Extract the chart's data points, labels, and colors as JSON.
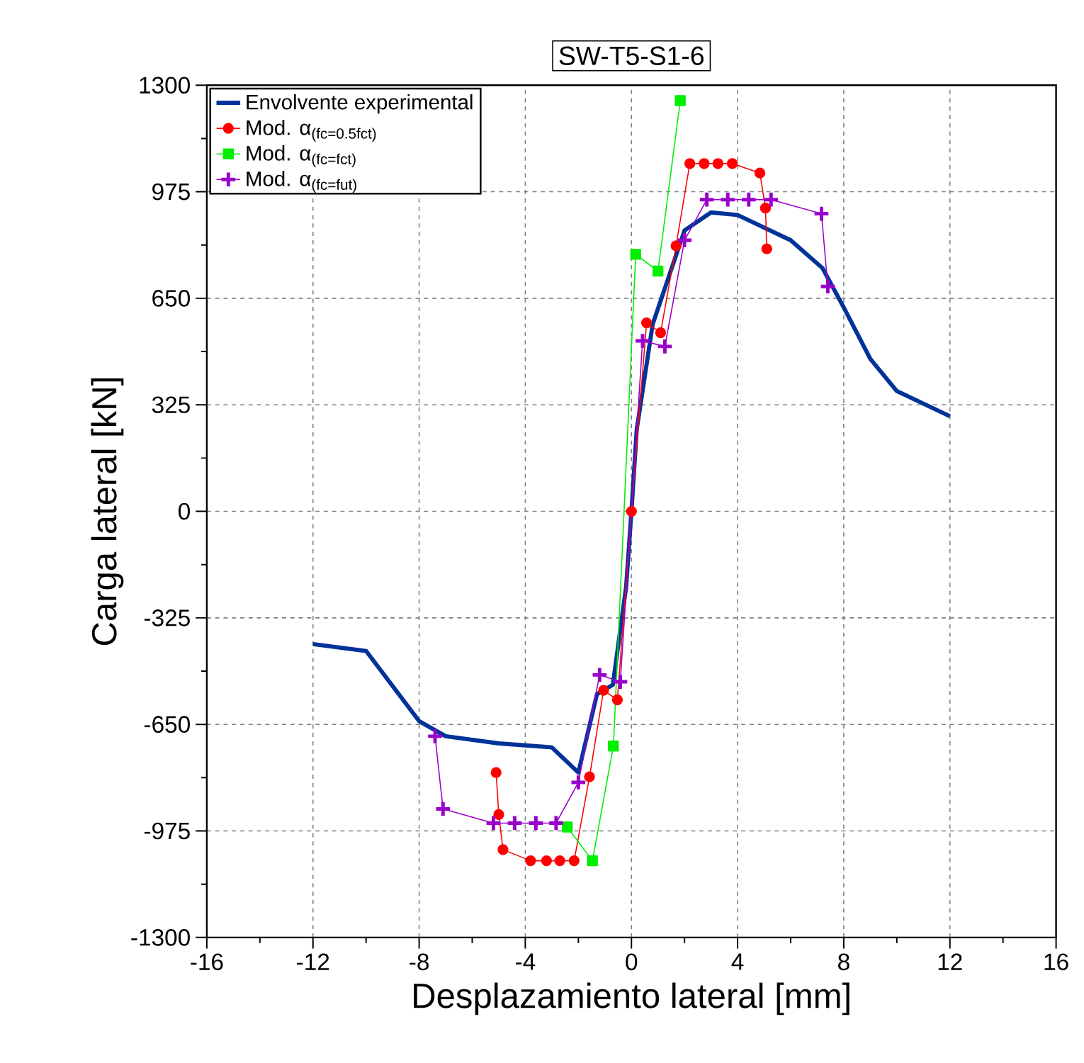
{
  "chart_data": {
    "type": "line",
    "title": "SW-T5-S1-6",
    "xlabel": "Desplazamiento lateral [mm]",
    "ylabel": "Carga lateral [kN]",
    "xlim": [
      -16,
      16
    ],
    "xticks": [
      -16,
      -12,
      -8,
      -4,
      0,
      4,
      8,
      12,
      16
    ],
    "ylim": [
      -1300,
      1300
    ],
    "yticks": [
      -1300,
      -975,
      -650,
      -325,
      0,
      325,
      650,
      975,
      1300
    ],
    "grid": true,
    "legend": "top left",
    "series": [
      {
        "name": "Envolvente experimental",
        "color": "#003399",
        "marker": "none",
        "x": [
          -12,
          -10,
          -8,
          -7,
          -5,
          -3,
          -2,
          -1.3,
          -0.7,
          -0.2,
          0,
          0.2,
          0.8,
          2,
          3,
          4,
          6,
          7.2,
          8,
          9,
          10,
          12
        ],
        "values": [
          -405,
          -426,
          -640,
          -686,
          -708,
          -720,
          -797,
          -558,
          -529,
          -230,
          0,
          250,
          571,
          857,
          912,
          904,
          827,
          742,
          622,
          465,
          367,
          290
        ]
      },
      {
        "name": "Mod. α$_{(fc=0.5fct)}$",
        "color": "#ff0000",
        "marker": "circle",
        "x": [
          -5.1,
          -5.0,
          -4.84,
          -3.8,
          -3.2,
          -2.7,
          -2.16,
          -1.58,
          -1.05,
          -0.53,
          0,
          0.57,
          1.1,
          1.68,
          2.2,
          2.74,
          3.26,
          3.8,
          4.84,
          5.05,
          5.1
        ],
        "values": [
          -797,
          -925,
          -1032,
          -1066,
          -1066,
          -1066,
          -1066,
          -810,
          -546,
          -575,
          0,
          575,
          545,
          810,
          1061,
          1061,
          1061,
          1061,
          1032,
          925,
          801
        ]
      },
      {
        "name": "Mod. α$_{(fc=fct)}$",
        "color": "#00ee00",
        "marker": "square",
        "x": [
          -2.42,
          -1.47,
          -0.68,
          0.16,
          1.0,
          1.84
        ],
        "values": [
          -963,
          -1066,
          -716,
          784,
          733,
          1253
        ]
      },
      {
        "name": "Mod. α$_{(fc=fut)}$",
        "color": "#9900cc",
        "marker": "cross",
        "x": [
          -7.4,
          -7.1,
          -5.2,
          -4.4,
          -3.6,
          -2.84,
          -2.0,
          -1.2,
          -0.42,
          0.42,
          1.26,
          2.0,
          2.84,
          3.63,
          4.42,
          5.26,
          7.16,
          7.4
        ],
        "values": [
          -686,
          -908,
          -951,
          -951,
          -951,
          -951,
          -827,
          -499,
          -520,
          520,
          503,
          827,
          951,
          951,
          951,
          951,
          908,
          686
        ]
      }
    ]
  }
}
